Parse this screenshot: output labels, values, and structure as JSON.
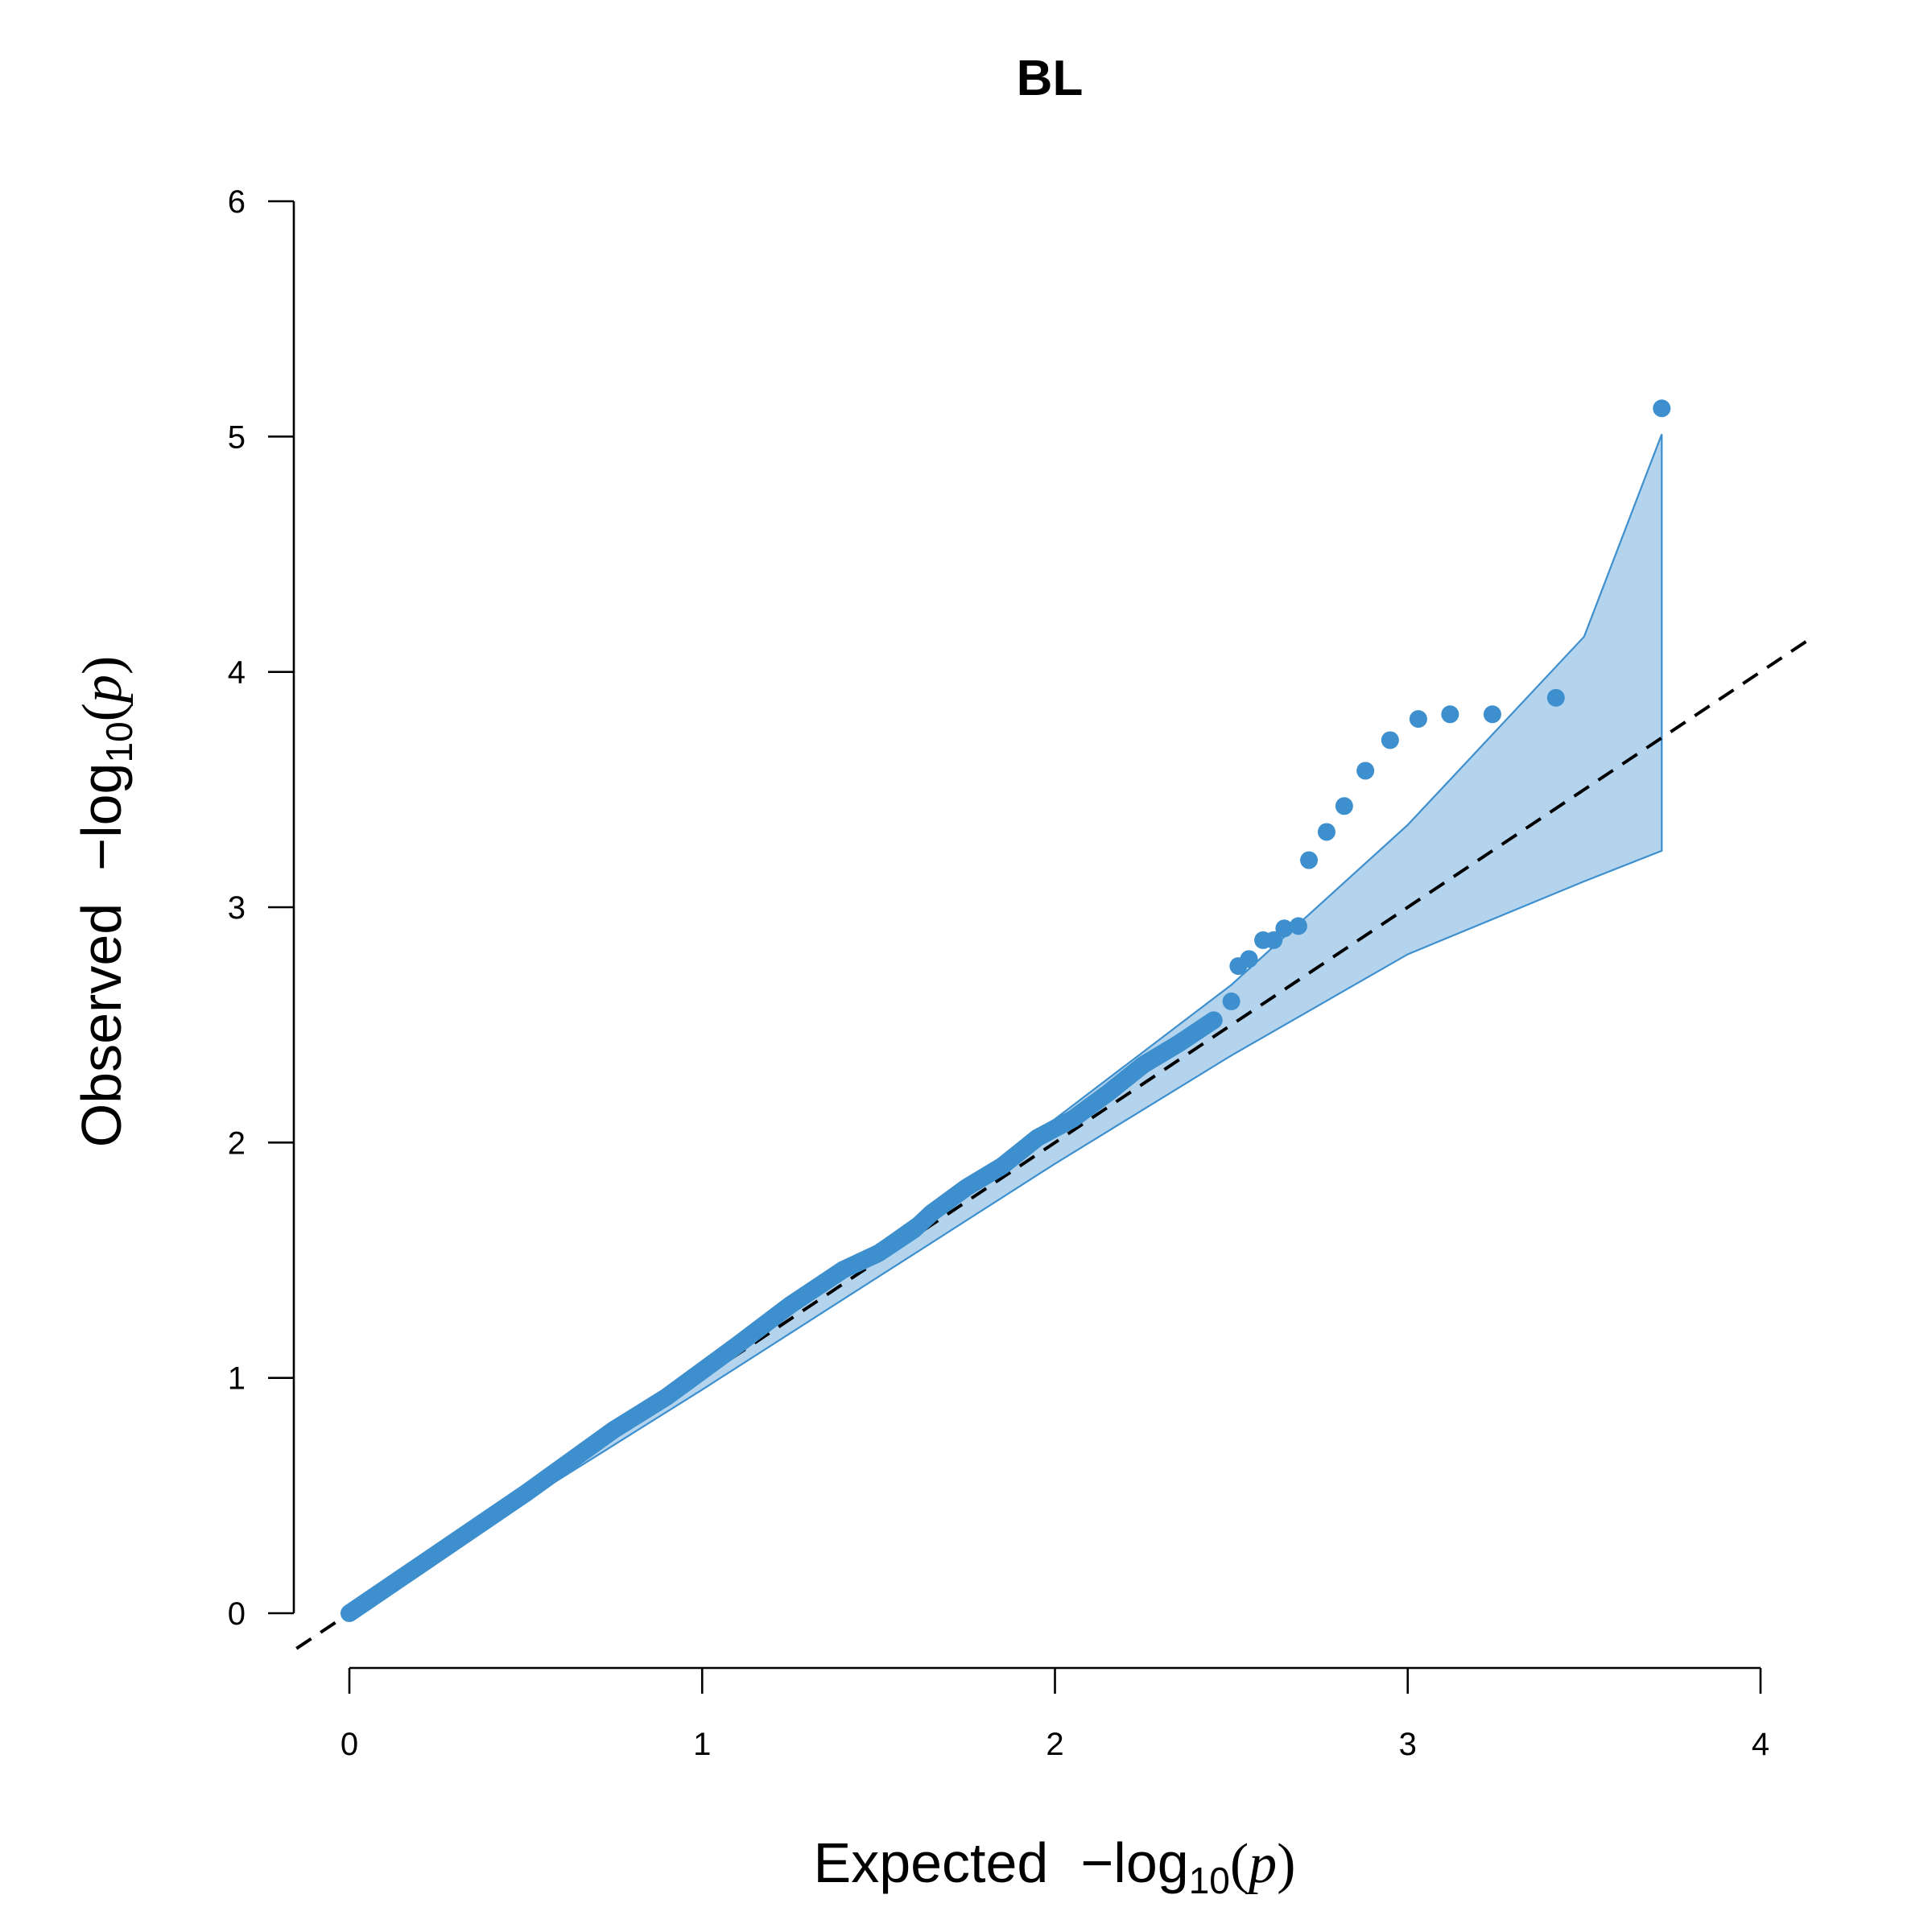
{
  "chart_data": {
    "type": "scatter",
    "title": "BL",
    "xlabel": {
      "prefix": "Expected",
      "minus": "−",
      "func": "log",
      "sub": "10",
      "lparen": "(",
      "var": "p",
      "rparen": ")"
    },
    "ylabel": {
      "prefix": "Observed",
      "minus": "−",
      "func": "log",
      "sub": "10",
      "lparen": "(",
      "var": "p",
      "rparen": ")"
    },
    "xlim": [
      0,
      4
    ],
    "ylim": [
      0,
      6
    ],
    "xticks": [
      "0",
      "1",
      "2",
      "3",
      "4"
    ],
    "yticks": [
      "0",
      "1",
      "2",
      "3",
      "4",
      "5",
      "6"
    ],
    "grid": false,
    "legend": "none",
    "reference_line": {
      "style": "dashed",
      "from": [
        -0.15,
        -0.15
      ],
      "to": [
        4.15,
        4.15
      ],
      "color": "#000000"
    },
    "confidence_band": {
      "color": "#b4d4ee",
      "edge_color": "#3d8fce",
      "x": [
        0,
        0.5,
        1.0,
        1.5,
        2.0,
        2.5,
        3.0,
        3.5,
        3.72
      ],
      "upper": [
        0,
        0.52,
        1.04,
        1.57,
        2.1,
        2.67,
        3.35,
        4.15,
        5.01
      ],
      "lower": [
        0,
        0.48,
        0.95,
        1.43,
        1.91,
        2.37,
        2.8,
        3.11,
        3.24
      ]
    },
    "point_color": "#3d8fce",
    "trace": {
      "x": [
        0,
        0.5,
        0.75,
        0.9,
        1.0,
        1.1,
        1.25,
        1.4,
        1.5,
        1.6,
        1.65,
        1.75,
        1.85,
        1.95,
        2.05,
        2.15,
        2.25,
        2.35,
        2.45
      ],
      "y": [
        0,
        0.51,
        0.78,
        0.92,
        1.03,
        1.14,
        1.31,
        1.46,
        1.53,
        1.63,
        1.7,
        1.81,
        1.9,
        2.02,
        2.1,
        2.21,
        2.33,
        2.42,
        2.52
      ]
    },
    "points": [
      {
        "x": 2.5,
        "y": 2.6
      },
      {
        "x": 2.52,
        "y": 2.75
      },
      {
        "x": 2.55,
        "y": 2.78
      },
      {
        "x": 2.59,
        "y": 2.86
      },
      {
        "x": 2.62,
        "y": 2.86
      },
      {
        "x": 2.65,
        "y": 2.91
      },
      {
        "x": 2.69,
        "y": 2.92
      },
      {
        "x": 2.72,
        "y": 3.2
      },
      {
        "x": 2.77,
        "y": 3.32
      },
      {
        "x": 2.82,
        "y": 3.43
      },
      {
        "x": 2.88,
        "y": 3.58
      },
      {
        "x": 2.95,
        "y": 3.71
      },
      {
        "x": 3.03,
        "y": 3.8
      },
      {
        "x": 3.12,
        "y": 3.82
      },
      {
        "x": 3.24,
        "y": 3.82
      },
      {
        "x": 3.42,
        "y": 3.89
      },
      {
        "x": 3.72,
        "y": 5.12
      }
    ]
  }
}
